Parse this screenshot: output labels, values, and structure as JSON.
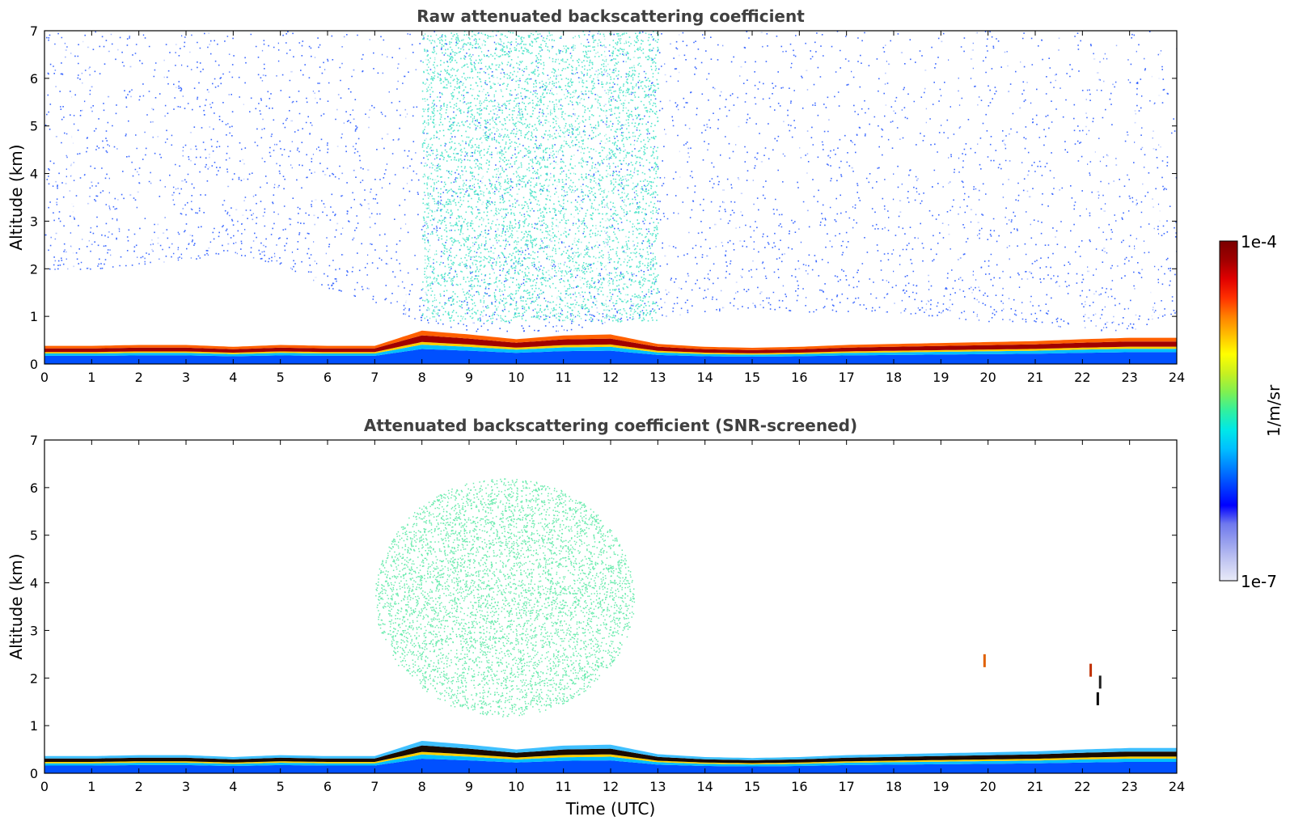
{
  "chart_data": [
    {
      "type": "heatmap",
      "title": "Raw attenuated backscattering coefficient",
      "xlabel": "",
      "ylabel": "Altitude (km)",
      "xlim": [
        0,
        24
      ],
      "ylim": [
        0,
        7
      ],
      "x_ticks": [
        0,
        1,
        2,
        3,
        4,
        5,
        6,
        7,
        8,
        9,
        10,
        11,
        12,
        13,
        14,
        15,
        16,
        17,
        18,
        19,
        20,
        21,
        22,
        23,
        24
      ],
      "y_ticks": [
        0,
        1,
        2,
        3,
        4,
        5,
        6,
        7
      ],
      "grid": false,
      "layer_top_km": [
        0.38,
        0.38,
        0.4,
        0.4,
        0.36,
        0.4,
        0.38,
        0.38,
        0.7,
        0.62,
        0.52,
        0.6,
        0.62,
        0.42,
        0.36,
        0.34,
        0.36,
        0.4,
        0.42,
        0.44,
        0.46,
        0.48,
        0.52,
        0.55,
        0.55
      ],
      "noise_extent_km": [
        2.0,
        2.0,
        2.1,
        2.2,
        2.3,
        2.1,
        1.6,
        1.3,
        0.9,
        0.7,
        0.7,
        0.7,
        0.9,
        1.0,
        1.1,
        1.2,
        1.1,
        1.1,
        1.1,
        1.0,
        0.9,
        0.9,
        0.7,
        0.7,
        1.1
      ]
    },
    {
      "type": "heatmap",
      "title": "Attenuated backscattering coefficient (SNR-screened)",
      "xlabel": "Time (UTC)",
      "ylabel": "Altitude (km)",
      "xlim": [
        0,
        24
      ],
      "ylim": [
        0,
        7
      ],
      "x_ticks": [
        0,
        1,
        2,
        3,
        4,
        5,
        6,
        7,
        8,
        9,
        10,
        11,
        12,
        13,
        14,
        15,
        16,
        17,
        18,
        19,
        20,
        21,
        22,
        23,
        24
      ],
      "y_ticks": [
        0,
        1,
        2,
        3,
        4,
        5,
        6,
        7
      ],
      "grid": false,
      "layer_top_km": [
        0.36,
        0.36,
        0.38,
        0.38,
        0.34,
        0.38,
        0.36,
        0.36,
        0.68,
        0.6,
        0.5,
        0.58,
        0.6,
        0.4,
        0.34,
        0.32,
        0.34,
        0.38,
        0.4,
        0.42,
        0.44,
        0.46,
        0.5,
        0.53,
        0.53
      ],
      "scatter_cloud": {
        "x_range": [
          7.0,
          12.5
        ],
        "y_range": [
          1.2,
          6.2
        ]
      }
    }
  ],
  "colorbar": {
    "min_label": "1e-7",
    "max_label": "1e-4",
    "label": "1/m/sr",
    "scale": "log",
    "colors": [
      "#e8eaf8",
      "#c4c8f2",
      "#9aa2ee",
      "#6f79ee",
      "#0000ff",
      "#0040ff",
      "#0080ff",
      "#00c0ff",
      "#00e8e8",
      "#30f0a0",
      "#80f050",
      "#c8f020",
      "#ffff00",
      "#ffc000",
      "#ff8000",
      "#ff3000",
      "#e00000",
      "#a00000",
      "#7a0000"
    ]
  }
}
